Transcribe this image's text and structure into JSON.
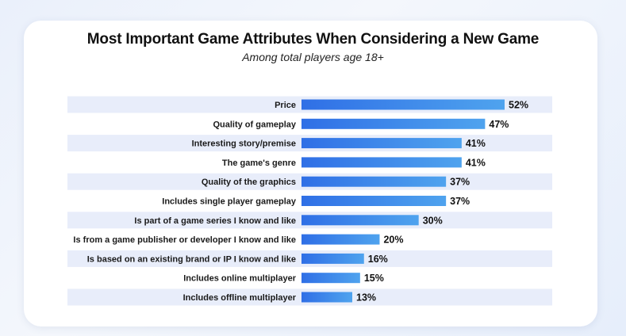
{
  "chart_data": {
    "type": "bar",
    "orientation": "horizontal",
    "title": "Most Important Game Attributes When Considering a New Game",
    "subtitle": "Among total players age 18+",
    "categories": [
      "Price",
      "Quality of gameplay",
      "Interesting story/premise",
      "The game's genre",
      "Quality of the graphics",
      "Includes single player gameplay",
      "Is part of a game series I know and like",
      "Is from a game publisher or developer I know and like",
      "Is based on an existing brand or IP I know and like",
      "Includes online multiplayer",
      "Includes offline multiplayer"
    ],
    "values": [
      52,
      47,
      41,
      41,
      37,
      37,
      30,
      20,
      16,
      15,
      13
    ],
    "value_labels": [
      "52%",
      "47%",
      "41%",
      "41%",
      "37%",
      "37%",
      "30%",
      "20%",
      "16%",
      "15%",
      "13%"
    ],
    "unit": "%",
    "xlim": [
      0,
      100
    ],
    "grid": false,
    "legend": "none",
    "colors": {
      "bar_dark": "#2f6fe6",
      "bar_light": "#4fa3ee",
      "row_band": "#e8edfa"
    }
  }
}
